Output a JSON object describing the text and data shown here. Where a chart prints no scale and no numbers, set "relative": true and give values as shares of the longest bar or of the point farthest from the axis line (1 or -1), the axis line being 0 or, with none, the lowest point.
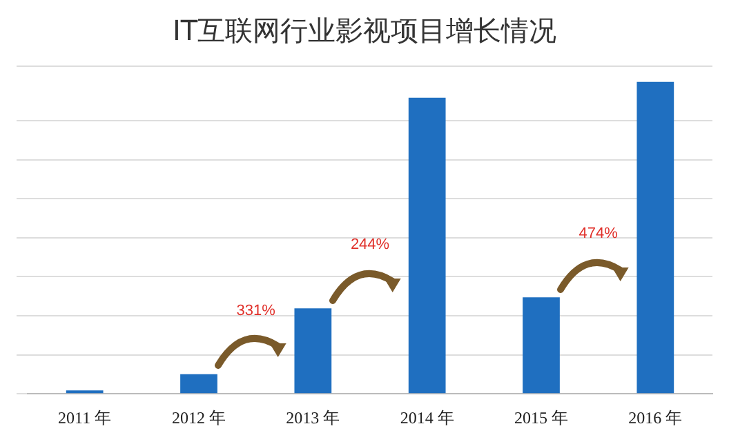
{
  "chart_data": {
    "type": "bar",
    "title": "IT互联网行业影视项目增长情况",
    "categories": [
      "2011 年",
      "2012 年",
      "2013 年",
      "2014 年",
      "2015 年",
      "2016 年"
    ],
    "values": [
      0.011,
      0.063,
      0.274,
      0.949,
      0.309,
      1
    ],
    "color": "#1f6fc0",
    "relative": true,
    "grid": "y",
    "annotations": [
      "331%",
      "244%",
      "474%"
    ]
  }
}
